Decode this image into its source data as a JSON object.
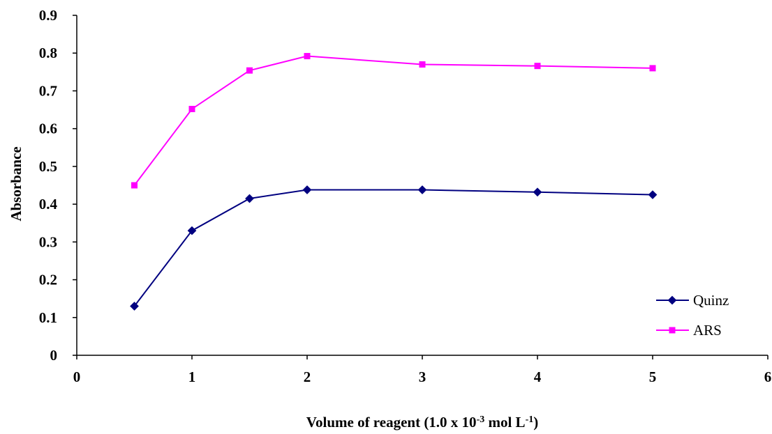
{
  "chart_data": {
    "type": "line",
    "title": "",
    "xlabel": {
      "prefix": "Volume of reagent (1.0 x 10",
      "exp1": "-3",
      "middle": " mol L",
      "exp2": "-1",
      "suffix": ")"
    },
    "ylabel": "Absorbance",
    "xlim": [
      0,
      6
    ],
    "ylim": [
      0,
      0.9
    ],
    "xticks": [
      "0",
      "1",
      "2",
      "3",
      "4",
      "5",
      "6"
    ],
    "yticks": [
      "0",
      "0.1",
      "0.2",
      "0.3",
      "0.4",
      "0.5",
      "0.6",
      "0.7",
      "0.8",
      "0.9"
    ],
    "x": [
      0.5,
      1,
      1.5,
      2,
      3,
      4,
      5
    ],
    "series": [
      {
        "name": "Quinz",
        "values": [
          0.13,
          0.33,
          0.415,
          0.438,
          0.438,
          0.432,
          0.425
        ],
        "color": "#000080",
        "marker": "diamond"
      },
      {
        "name": "ARS",
        "values": [
          0.45,
          0.652,
          0.754,
          0.792,
          0.77,
          0.766,
          0.76
        ],
        "color": "#FF00FF",
        "marker": "square"
      }
    ],
    "grid": false,
    "legend_position": "bottom-right"
  }
}
